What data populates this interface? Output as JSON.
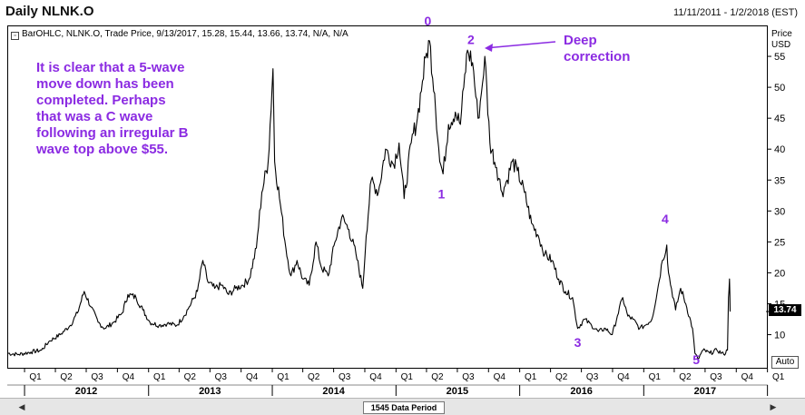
{
  "window": {
    "title": "Daily NLNK.O",
    "date_range": "11/11/2011 - 1/2/2018 (EST)"
  },
  "legend_text": "BarOHLC, NLNK.O, Trade Price, 9/13/2017, 15.28, 15.44, 13.66, 13.74, N/A, N/A",
  "axis_titles": {
    "price": "Price",
    "currency": "USD"
  },
  "last_price": "13.74",
  "auto_label": "Auto",
  "footer": {
    "data_period": "1545 Data Period"
  },
  "icons": {
    "legend": "bar-ohlc-icon",
    "scroll_left": "triangle-left-icon",
    "scroll_right": "triangle-right-icon"
  },
  "annotations": {
    "main_text": [
      "It is clear that a 5-wave",
      "move down has been",
      "completed. Perhaps",
      "that was a C wave",
      "following an irregular B",
      "wave top above $55."
    ],
    "callout_text": [
      "Deep",
      "correction"
    ],
    "color": "#8b2be2"
  },
  "chart_data": {
    "type": "line",
    "x_start": "2011-11-11",
    "x_end": "2018-01-02",
    "ylim": [
      4.5,
      60
    ],
    "y_ticks": [
      10,
      15,
      20,
      25,
      30,
      35,
      40,
      45,
      50,
      55
    ],
    "y_tick_labels": [
      "10",
      "15",
      "20",
      "25",
      "30",
      "35",
      "40",
      "45",
      "50",
      "55"
    ],
    "x_quarter_labels": [
      "Q1",
      "Q2",
      "Q3",
      "Q4",
      "Q1",
      "Q2",
      "Q3",
      "Q4",
      "Q1",
      "Q2",
      "Q3",
      "Q4",
      "Q1",
      "Q2",
      "Q3",
      "Q4",
      "Q1",
      "Q2",
      "Q3",
      "Q4",
      "Q1",
      "Q2",
      "Q3",
      "Q4",
      "Q1"
    ],
    "x_year_labels": [
      "2012",
      "2013",
      "2014",
      "2015",
      "2016",
      "2017"
    ],
    "series": [
      {
        "color": "#000000",
        "points": [
          [
            "2011-11-11",
            7.0
          ],
          [
            "2011-12-15",
            6.8
          ],
          [
            "2012-01-20",
            7.2
          ],
          [
            "2012-02-20",
            7.5
          ],
          [
            "2012-03-15",
            9.0
          ],
          [
            "2012-04-15",
            10.0
          ],
          [
            "2012-05-15",
            11.5
          ],
          [
            "2012-06-05",
            13.5
          ],
          [
            "2012-06-25",
            17.0
          ],
          [
            "2012-07-15",
            14.5
          ],
          [
            "2012-08-05",
            12.0
          ],
          [
            "2012-08-25",
            11.0
          ],
          [
            "2012-09-20",
            12.0
          ],
          [
            "2012-10-15",
            13.5
          ],
          [
            "2012-11-01",
            16.5
          ],
          [
            "2012-11-25",
            16.0
          ],
          [
            "2012-12-15",
            14.0
          ],
          [
            "2013-01-05",
            12.0
          ],
          [
            "2013-02-01",
            11.5
          ],
          [
            "2013-02-25",
            11.8
          ],
          [
            "2013-03-25",
            11.5
          ],
          [
            "2013-04-15",
            13.0
          ],
          [
            "2013-05-01",
            14.5
          ],
          [
            "2013-05-25",
            17.0
          ],
          [
            "2013-06-10",
            22.0
          ],
          [
            "2013-06-25",
            18.5
          ],
          [
            "2013-07-15",
            17.5
          ],
          [
            "2013-08-05",
            18.0
          ],
          [
            "2013-08-25",
            16.5
          ],
          [
            "2013-09-15",
            17.5
          ],
          [
            "2013-10-05",
            18.0
          ],
          [
            "2013-10-25",
            19.0
          ],
          [
            "2013-11-15",
            24.0
          ],
          [
            "2013-12-01",
            33.0
          ],
          [
            "2013-12-20",
            38.0
          ],
          [
            "2014-01-03",
            53.0
          ],
          [
            "2014-01-08",
            38.0
          ],
          [
            "2014-01-25",
            31.0
          ],
          [
            "2014-02-10",
            24.0
          ],
          [
            "2014-02-25",
            19.5
          ],
          [
            "2014-03-15",
            22.0
          ],
          [
            "2014-04-01",
            19.0
          ],
          [
            "2014-04-20",
            18.0
          ],
          [
            "2014-05-10",
            25.0
          ],
          [
            "2014-05-25",
            21.0
          ],
          [
            "2014-06-15",
            19.5
          ],
          [
            "2014-07-05",
            25.0
          ],
          [
            "2014-07-25",
            29.0
          ],
          [
            "2014-08-15",
            27.0
          ],
          [
            "2014-09-05",
            23.0
          ],
          [
            "2014-09-25",
            17.5
          ],
          [
            "2014-10-05",
            26.0
          ],
          [
            "2014-10-20",
            35.0
          ],
          [
            "2014-11-10",
            33.0
          ],
          [
            "2014-12-01",
            40.0
          ],
          [
            "2014-12-25",
            37.5
          ],
          [
            "2015-01-10",
            41.0
          ],
          [
            "2015-01-25",
            32.0
          ],
          [
            "2015-02-15",
            41.0
          ],
          [
            "2015-03-05",
            45.0
          ],
          [
            "2015-03-20",
            51.0
          ],
          [
            "2015-04-01",
            55.5
          ],
          [
            "2015-04-10",
            57.5
          ],
          [
            "2015-04-25",
            49.0
          ],
          [
            "2015-05-10",
            38.0
          ],
          [
            "2015-05-20",
            36.0
          ],
          [
            "2015-06-05",
            44.0
          ],
          [
            "2015-06-25",
            46.0
          ],
          [
            "2015-07-10",
            44.0
          ],
          [
            "2015-07-20",
            50.0
          ],
          [
            "2015-07-31",
            56.0
          ],
          [
            "2015-08-15",
            54.0
          ],
          [
            "2015-08-31",
            45.0
          ],
          [
            "2015-09-10",
            49.0
          ],
          [
            "2015-09-20",
            55.0
          ],
          [
            "2015-10-05",
            41.0
          ],
          [
            "2015-10-25",
            37.0
          ],
          [
            "2015-11-10",
            33.0
          ],
          [
            "2015-11-25",
            35.0
          ],
          [
            "2015-12-10",
            38.0
          ],
          [
            "2015-12-25",
            36.5
          ],
          [
            "2016-01-15",
            33.0
          ],
          [
            "2016-02-05",
            28.0
          ],
          [
            "2016-02-25",
            26.0
          ],
          [
            "2016-03-15",
            23.0
          ],
          [
            "2016-04-05",
            22.0
          ],
          [
            "2016-04-25",
            19.0
          ],
          [
            "2016-05-15",
            17.0
          ],
          [
            "2016-06-05",
            16.0
          ],
          [
            "2016-06-20",
            11.0
          ],
          [
            "2016-07-10",
            12.5
          ],
          [
            "2016-07-31",
            11.5
          ],
          [
            "2016-08-20",
            10.5
          ],
          [
            "2016-09-10",
            11.0
          ],
          [
            "2016-09-30",
            10.0
          ],
          [
            "2016-10-15",
            13.0
          ],
          [
            "2016-10-31",
            16.0
          ],
          [
            "2016-11-15",
            13.0
          ],
          [
            "2016-11-30",
            12.5
          ],
          [
            "2016-12-20",
            11.0
          ],
          [
            "2017-01-05",
            11.5
          ],
          [
            "2017-01-25",
            12.5
          ],
          [
            "2017-02-10",
            17.0
          ],
          [
            "2017-02-25",
            22.0
          ],
          [
            "2017-03-10",
            24.5
          ],
          [
            "2017-03-15",
            20.0
          ],
          [
            "2017-04-05",
            14.0
          ],
          [
            "2017-04-20",
            17.5
          ],
          [
            "2017-05-05",
            15.0
          ],
          [
            "2017-05-25",
            11.0
          ],
          [
            "2017-06-01",
            7.0
          ],
          [
            "2017-06-10",
            6.0
          ],
          [
            "2017-06-25",
            7.5
          ],
          [
            "2017-07-15",
            7.0
          ],
          [
            "2017-08-05",
            7.5
          ],
          [
            "2017-08-25",
            6.8
          ],
          [
            "2017-09-05",
            7.5
          ],
          [
            "2017-09-08",
            16.0
          ],
          [
            "2017-09-11",
            19.0
          ],
          [
            "2017-09-13",
            13.74
          ]
        ]
      }
    ],
    "wave_labels": [
      {
        "text": "0",
        "x": "2015-04-05",
        "y": 60.0
      },
      {
        "text": "2",
        "x": "2015-08-10",
        "y": 57.0
      },
      {
        "text": "1",
        "x": "2015-05-15",
        "y": 32.0
      },
      {
        "text": "3",
        "x": "2016-06-20",
        "y": 8.0
      },
      {
        "text": "4",
        "x": "2017-03-05",
        "y": 28.0
      },
      {
        "text": "5",
        "x": "2017-06-05",
        "y": 5.2
      }
    ]
  }
}
